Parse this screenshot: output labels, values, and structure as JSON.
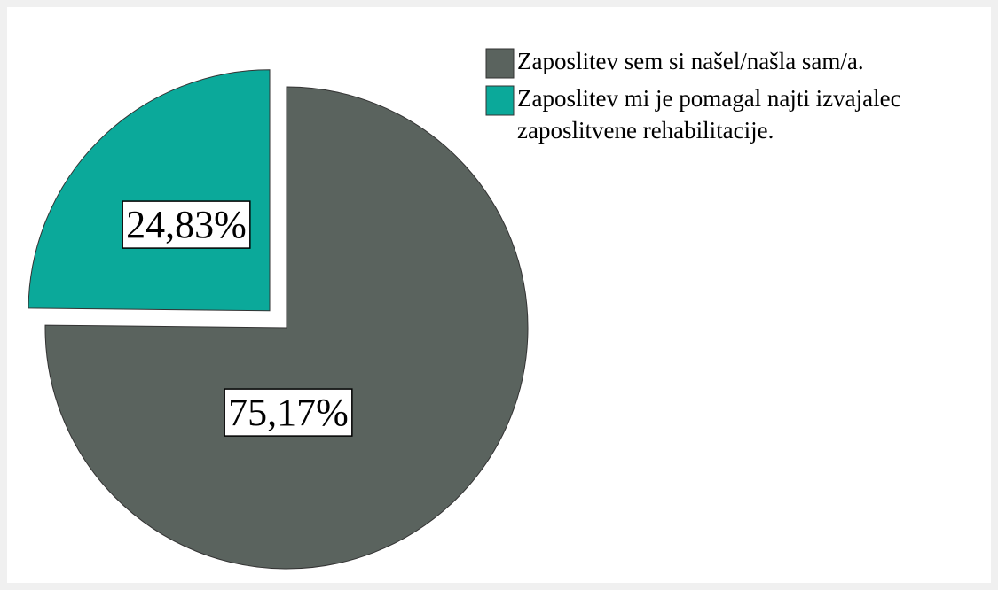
{
  "chart_data": {
    "type": "pie",
    "categories": [
      "Zaposlitev sem si našel/našla sam/a.",
      "Zaposlitev mi je pomagal najti izvajalec zaposlitvene rehabilitacije."
    ],
    "values": [
      75.17,
      24.83
    ],
    "value_labels": [
      "75,17%",
      "24,83%"
    ],
    "colors": [
      "#5a635e",
      "#0ba99a"
    ],
    "legend": "top-right"
  }
}
